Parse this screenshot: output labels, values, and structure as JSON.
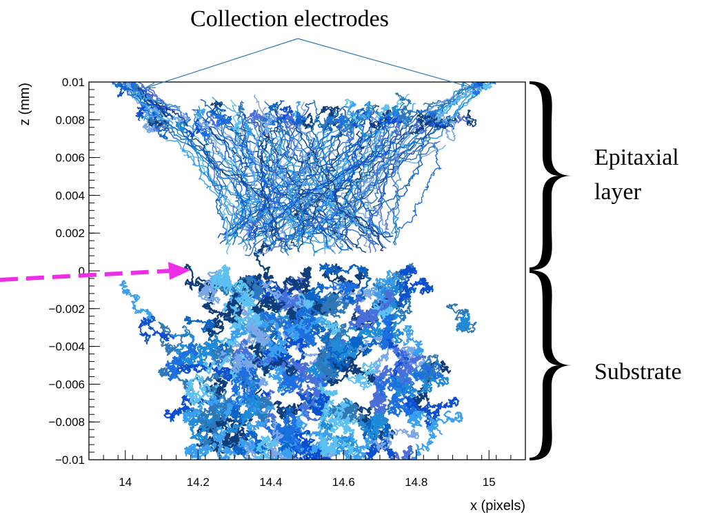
{
  "chart_data": {
    "type": "scatter",
    "title": "",
    "xlabel": "x (pixels)",
    "ylabel": "z (mm)",
    "xlim": [
      13.9,
      15.1
    ],
    "ylim": [
      -0.01,
      0.01
    ],
    "x_ticks": [
      "14",
      "14.2",
      "14.4",
      "14.6",
      "14.8",
      "15"
    ],
    "x_tick_values": [
      14.0,
      14.2,
      14.4,
      14.6,
      14.8,
      15.0
    ],
    "y_ticks": [
      "0.01",
      "0.008",
      "0.006",
      "0.004",
      "0.002",
      "0",
      "−0.002",
      "−0.004",
      "−0.006",
      "−0.008",
      "−0.01"
    ],
    "y_tick_values": [
      0.01,
      0.008,
      0.006,
      0.004,
      0.002,
      0.0,
      -0.002,
      -0.004,
      -0.006,
      -0.008,
      -0.01
    ],
    "series": [
      {
        "x": [
          14.03,
          14.06,
          14.12,
          14.2,
          14.3,
          14.4,
          14.5,
          14.6,
          14.7,
          14.8,
          14.88,
          14.94,
          14.97
        ],
        "y": [
          0.0097,
          0.0088,
          0.0082,
          0.008,
          0.0079,
          0.0079,
          0.008,
          0.0079,
          0.0079,
          0.008,
          0.0082,
          0.0088,
          0.0097
        ]
      },
      {
        "x": [
          14.3,
          14.35,
          14.45,
          14.5,
          14.55,
          14.65,
          14.7
        ],
        "y": [
          0.0075,
          0.0045,
          0.0015,
          0.0008,
          0.0015,
          0.0045,
          0.0075
        ]
      },
      {
        "x": [
          14.15,
          14.25,
          14.45,
          14.5,
          14.55,
          14.75,
          14.85
        ],
        "y": [
          -0.0098,
          -0.006,
          -0.002,
          -0.0005,
          -0.002,
          -0.006,
          -0.0098
        ]
      },
      {
        "x": [
          14.1,
          14.2,
          14.5,
          14.8,
          14.95
        ],
        "y": [
          -0.005,
          -0.004,
          -0.003,
          -0.004,
          -0.005
        ]
      }
    ],
    "colors": [
      "#0b4fd1",
      "#3a9ff0",
      "#1c6fe0",
      "#5cc1f2",
      "#0d3d7a",
      "#2e78b8",
      "#7aa7e8",
      "#0a64c8",
      "#1f8ad6",
      "#4b6fd9"
    ],
    "grid": false,
    "legend": "none",
    "annotations": {
      "electrodes": "Collection electrodes",
      "epi_line1": "Epitaxial",
      "epi_line2": "layer",
      "substrate": "Substrate"
    },
    "interface_arrow_color": "#ee2ee6"
  }
}
